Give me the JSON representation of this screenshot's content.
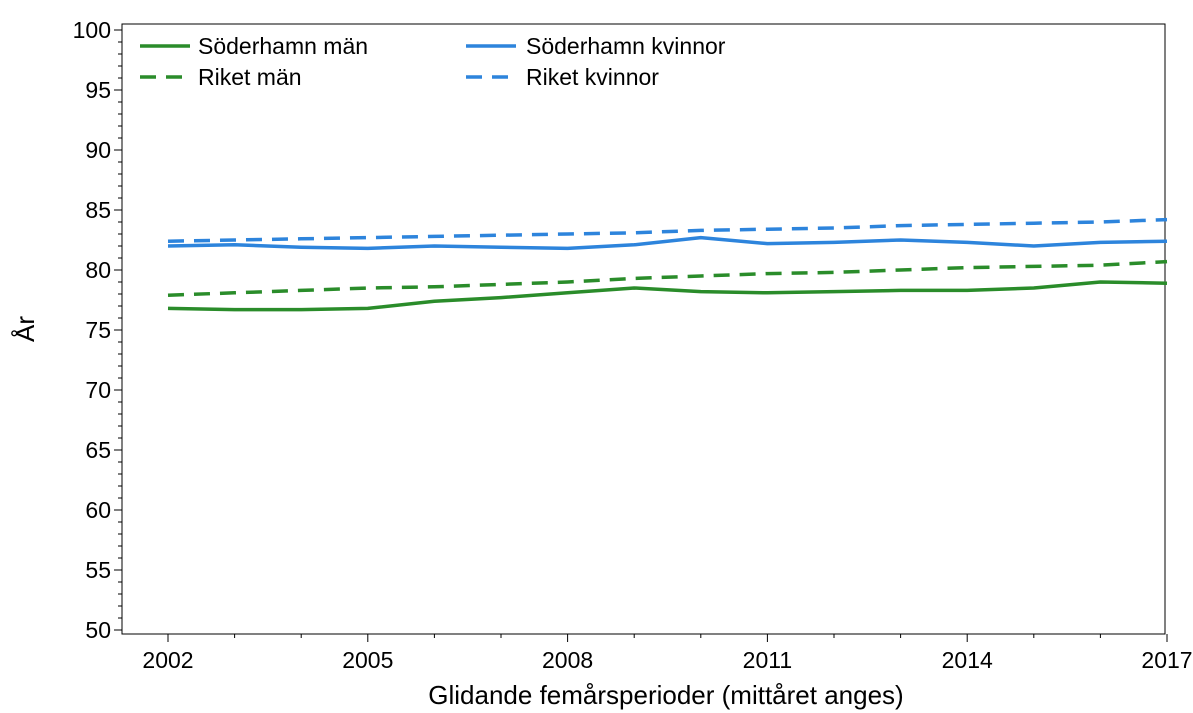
{
  "chart_data": {
    "type": "line",
    "xlabel": "Glidande femårsperioder (mittåret anges)",
    "ylabel": "År",
    "ylim": [
      50,
      100
    ],
    "xlim": [
      2002,
      2017
    ],
    "yticks": [
      "50",
      "55",
      "60",
      "65",
      "70",
      "75",
      "80",
      "85",
      "90",
      "95",
      "100"
    ],
    "xticks": [
      "2002",
      "2005",
      "2008",
      "2011",
      "2014",
      "2017"
    ],
    "grid": false,
    "legend_position": "top-left",
    "x": [
      2002,
      2003,
      2004,
      2005,
      2006,
      2007,
      2008,
      2009,
      2010,
      2011,
      2012,
      2013,
      2014,
      2015,
      2016,
      2017
    ],
    "series": [
      {
        "name": "Söderhamn män",
        "color": "#2a8c2a",
        "dash": "solid",
        "values": [
          76.8,
          76.7,
          76.7,
          76.8,
          77.4,
          77.7,
          78.1,
          78.5,
          78.2,
          78.1,
          78.2,
          78.3,
          78.3,
          78.5,
          79.0,
          78.9
        ]
      },
      {
        "name": "Söderhamn kvinnor",
        "color": "#2d84dc",
        "dash": "solid",
        "values": [
          82.0,
          82.1,
          81.9,
          81.8,
          82.0,
          81.9,
          81.8,
          82.1,
          82.7,
          82.2,
          82.3,
          82.5,
          82.3,
          82.0,
          82.3,
          82.4
        ]
      },
      {
        "name": "Riket män",
        "color": "#2a8c2a",
        "dash": "dashed",
        "values": [
          77.9,
          78.1,
          78.3,
          78.5,
          78.6,
          78.8,
          79.0,
          79.3,
          79.5,
          79.7,
          79.8,
          80.0,
          80.2,
          80.3,
          80.4,
          80.7
        ]
      },
      {
        "name": "Riket kvinnor",
        "color": "#2d84dc",
        "dash": "dashed",
        "values": [
          82.4,
          82.5,
          82.6,
          82.7,
          82.8,
          82.9,
          83.0,
          83.1,
          83.3,
          83.4,
          83.5,
          83.7,
          83.8,
          83.9,
          84.0,
          84.2
        ]
      }
    ]
  }
}
